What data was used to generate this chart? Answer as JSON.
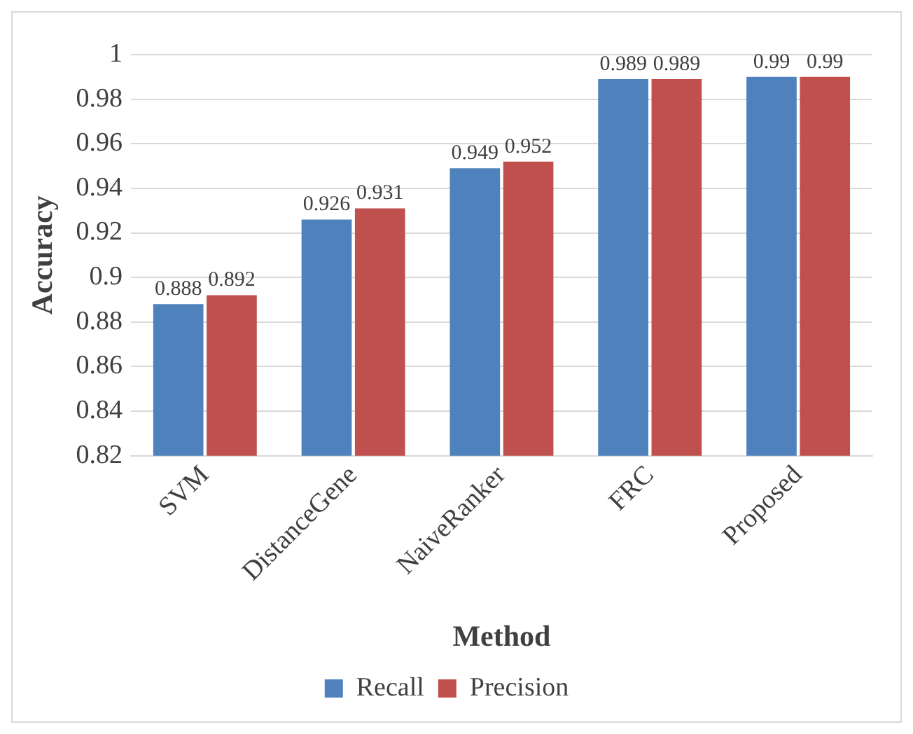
{
  "chart_data": {
    "type": "bar",
    "xlabel": "Method",
    "ylabel": "Accuracy",
    "categories": [
      "SVM",
      "DistanceGene",
      "NaiveRanker",
      "FRC",
      "Proposed"
    ],
    "series": [
      {
        "name": "Recall",
        "color": "#4f81bd",
        "values": [
          0.888,
          0.926,
          0.949,
          0.989,
          0.99
        ]
      },
      {
        "name": "Precision",
        "color": "#c0504d",
        "values": [
          0.892,
          0.931,
          0.952,
          0.989,
          0.99
        ]
      }
    ],
    "ylim": [
      0.82,
      1
    ],
    "yticks": [
      0.82,
      0.84,
      0.86,
      0.88,
      0.9,
      0.92,
      0.94,
      0.96,
      0.98,
      1
    ],
    "grid": "y",
    "legend": "bottom",
    "data_labels": true
  }
}
